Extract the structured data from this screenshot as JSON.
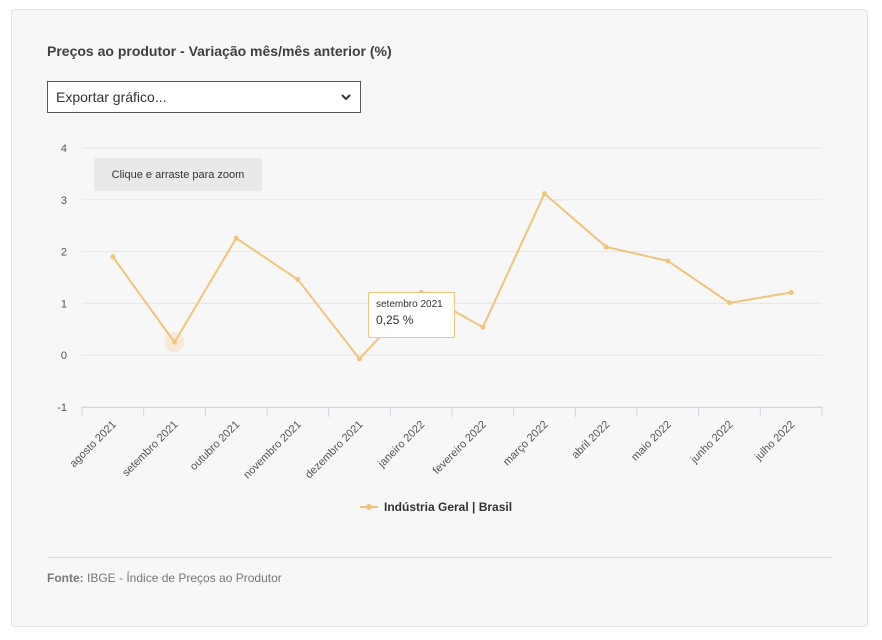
{
  "title": "Preços ao produtor - Variação mês/mês anterior (%)",
  "export_select": {
    "value": "Exportar gráfico..."
  },
  "zoom_hint": "Clique e arraste para zoom",
  "tooltip": {
    "date": "setembro 2021",
    "value": "0,25 %"
  },
  "legend": {
    "label": "Indústria Geral | Brasil"
  },
  "source": {
    "label": "Fonte:",
    "text": "IBGE - Índice de Preços ao Produtor"
  },
  "colors": {
    "series": "#f0c47a",
    "grid": "#e6e6e6",
    "axis": "#ccd6eb"
  },
  "chart_data": {
    "type": "line",
    "title": "Preços ao produtor - Variação mês/mês anterior (%)",
    "categories": [
      "agosto 2021",
      "setembro 2021",
      "outubro 2021",
      "novembro 2021",
      "dezembro 2021",
      "janeiro 2022",
      "fevereiro 2022",
      "março 2022",
      "abril 2022",
      "maio 2022",
      "junho 2022",
      "julho 2022"
    ],
    "series": [
      {
        "name": "Indústria Geral | Brasil",
        "values": [
          1.9,
          0.25,
          2.26,
          1.46,
          -0.07,
          1.21,
          0.54,
          3.12,
          2.09,
          1.82,
          1.01,
          1.21
        ]
      }
    ],
    "yticks": [
      "4",
      "3",
      "2",
      "1",
      "0",
      "-1"
    ],
    "ylim": [
      -1,
      4
    ],
    "grid": true,
    "legend_position": "bottom-center",
    "highlighted_index": 1
  }
}
